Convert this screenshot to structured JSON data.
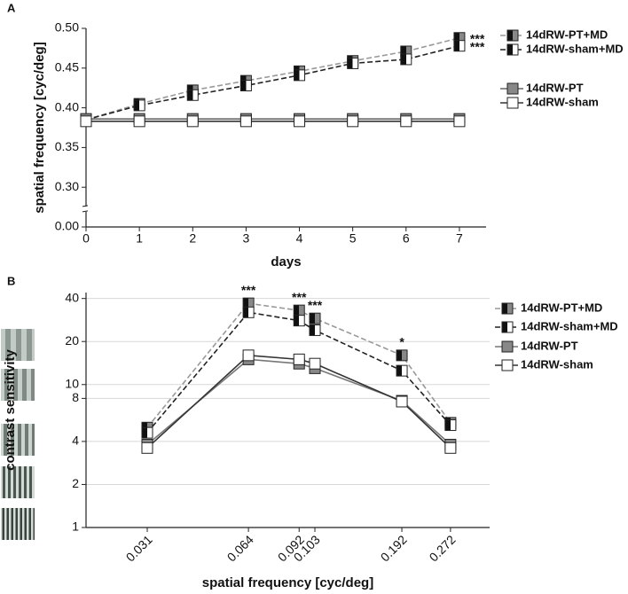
{
  "chart_data": [
    {
      "type": "line",
      "panel_label": "A",
      "xlabel": "days",
      "ylabel": "spatial frequency [cyc/deg]",
      "x": [
        0,
        1,
        2,
        3,
        4,
        5,
        6,
        7
      ],
      "xlim": [
        0,
        7.5
      ],
      "xticks": [
        0,
        1,
        2,
        3,
        4,
        5,
        6,
        7
      ],
      "ylim": [
        0,
        0.5
      ],
      "y_axis_break": [
        0,
        0.3
      ],
      "yticks": [
        {
          "value": 0,
          "label": "0.00"
        },
        {
          "value": 0.3,
          "label": "0.30"
        },
        {
          "value": 0.35,
          "label": "0.35"
        },
        {
          "value": 0.4,
          "label": "0.40"
        },
        {
          "value": 0.45,
          "label": "0.45"
        },
        {
          "value": 0.5,
          "label": "0.50"
        }
      ],
      "series": [
        {
          "name": "14dRW-PT+MD",
          "color": "#999999",
          "line_style": "dashed",
          "marker_colors": [
            "#111111",
            "#888888"
          ],
          "annotation": "***",
          "values": [
            0.385,
            0.405,
            0.422,
            0.434,
            0.446,
            0.459,
            0.471,
            0.488
          ]
        },
        {
          "name": "14dRW-sham+MD",
          "color": "#222222",
          "line_style": "dashed",
          "marker_colors": [
            "#111111",
            "#ffffff"
          ],
          "annotation": "***",
          "values": [
            0.385,
            0.403,
            0.416,
            0.428,
            0.441,
            0.456,
            0.461,
            0.478
          ]
        },
        {
          "name": "14dRW-PT",
          "color": "#666666",
          "line_style": "solid",
          "marker_colors": [
            "#888888",
            "#888888"
          ],
          "values": [
            0.386,
            0.386,
            0.386,
            0.386,
            0.386,
            0.386,
            0.386,
            0.386
          ]
        },
        {
          "name": "14dRW-sham",
          "color": "#333333",
          "line_style": "solid",
          "marker_colors": [
            "#ffffff",
            "#ffffff"
          ],
          "values": [
            0.383,
            0.383,
            0.383,
            0.383,
            0.383,
            0.383,
            0.383,
            0.383
          ]
        }
      ]
    },
    {
      "type": "line",
      "panel_label": "B",
      "xlabel": "spatial frequency [cyc/deg]",
      "ylabel": "contrast sensitivity",
      "xscale": "log",
      "yscale": "log",
      "grid": true,
      "x": [
        0.031,
        0.064,
        0.092,
        0.103,
        0.192,
        0.272
      ],
      "xlim": [
        0.02,
        0.36
      ],
      "xticks": [
        0.031,
        0.064,
        0.092,
        0.103,
        0.192,
        0.272
      ],
      "ylim": [
        1,
        44
      ],
      "yticks": [
        1,
        2,
        4,
        8,
        10,
        20,
        40
      ],
      "annotations": [
        {
          "x": 0.064,
          "text": "***"
        },
        {
          "x": 0.092,
          "text": "***"
        },
        {
          "x": 0.103,
          "text": "***"
        },
        {
          "x": 0.192,
          "text": "*"
        }
      ],
      "series": [
        {
          "name": "14dRW-PT+MD",
          "color": "#999999",
          "line_style": "dashed",
          "marker_colors": [
            "#111111",
            "#888888"
          ],
          "values": [
            5.0,
            37,
            33,
            29,
            16,
            5.4
          ]
        },
        {
          "name": "14dRW-sham+MD",
          "color": "#222222",
          "line_style": "dashed",
          "marker_colors": [
            "#111111",
            "#ffffff"
          ],
          "values": [
            4.6,
            32,
            28,
            24,
            12.5,
            5.2
          ]
        },
        {
          "name": "14dRW-PT",
          "color": "#777777",
          "line_style": "solid",
          "marker_colors": [
            "#888888",
            "#888888"
          ],
          "values": [
            3.8,
            15,
            14,
            13,
            7.7,
            3.8
          ]
        },
        {
          "name": "14dRW-sham",
          "color": "#333333",
          "line_style": "solid",
          "marker_colors": [
            "#ffffff",
            "#ffffff"
          ],
          "values": [
            3.6,
            16,
            15,
            14,
            7.6,
            3.6
          ]
        }
      ]
    }
  ]
}
